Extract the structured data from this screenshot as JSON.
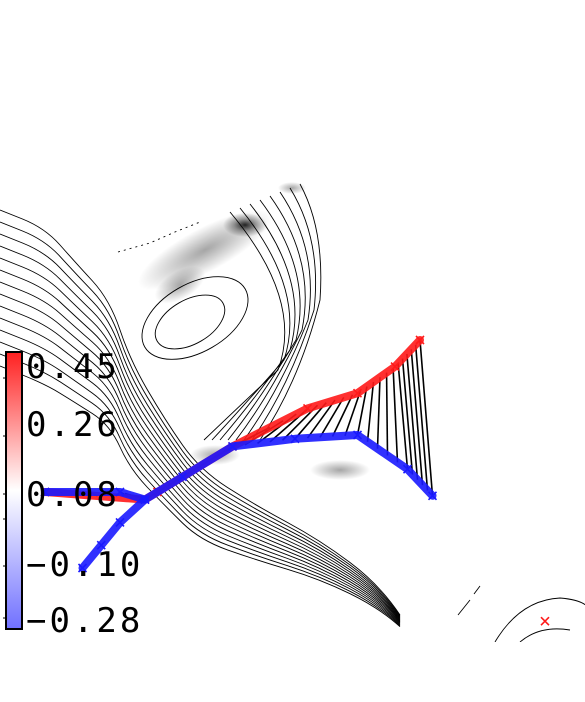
{
  "chart_data": {
    "type": "line",
    "title": "",
    "xlabel": "",
    "ylabel": "",
    "grid": false,
    "colorbar": {
      "ticks": [
        "0.45",
        "0.26",
        "0.08",
        "−0.10",
        "−0.28"
      ],
      "range": [
        -0.28,
        0.45
      ],
      "high_color": "#ff2020",
      "low_color": "#7070ff",
      "placement": "left"
    },
    "series": [
      {
        "role": "path-a",
        "color": "#ff1a1a",
        "x": [
          0.0,
          0.16,
          0.18,
          0.3,
          0.42,
          0.5,
          0.56,
          0.6
        ],
        "y": [
          0.0,
          -0.02,
          0.0,
          0.12,
          0.22,
          0.26,
          0.33,
          0.4
        ]
      },
      {
        "role": "path-b",
        "color": "#1a1aff",
        "x": [
          0.0,
          0.12,
          0.16,
          0.22,
          0.3,
          0.4,
          0.5,
          0.58,
          0.62
        ],
        "y": [
          0.0,
          0.0,
          -0.02,
          0.04,
          0.12,
          0.14,
          0.15,
          0.06,
          -0.01
        ]
      },
      {
        "role": "path-b-branch",
        "color": "#1a1aff",
        "x": [
          0.16,
          0.12,
          0.09,
          0.06
        ],
        "y": [
          -0.02,
          -0.08,
          -0.14,
          -0.2
        ]
      },
      {
        "role": "stray-point",
        "color": "#ff1a1a",
        "x": [
          0.8
        ],
        "y": [
          -0.34
        ]
      }
    ]
  }
}
